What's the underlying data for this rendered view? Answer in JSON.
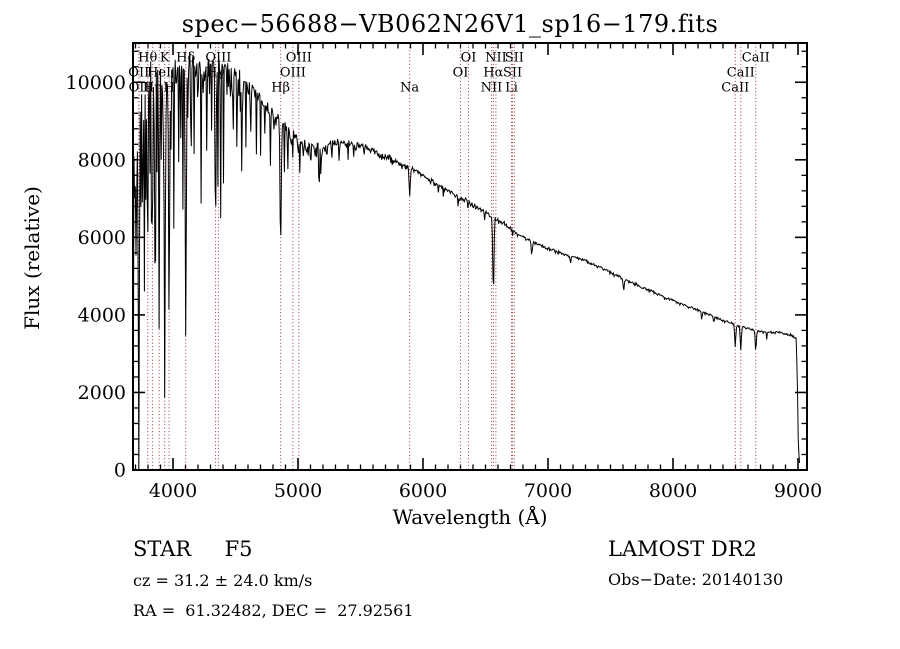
{
  "title": "spec−56688−VB062N26V1_sp16−179.fits",
  "axes": {
    "x_label": "Wavelength (Å)",
    "y_label": "Flux (relative)"
  },
  "annotations": {
    "class_line": "STAR     F5",
    "cz_line": "cz = 31.2 ± 24.0 km/s",
    "radec_line": "RA =  61.32482, DEC =  27.92561",
    "survey": "LAMOST DR2",
    "obsdate_line": "Obs−Date: 20140130"
  },
  "chart_data": {
    "type": "line",
    "title": "spec−56688−VB062N26V1_sp16−179.fits",
    "xlabel": "Wavelength (Å)",
    "ylabel": "Flux (relative)",
    "xlim": [
      3680,
      9072
    ],
    "ylim": [
      0,
      11010
    ],
    "x_ticks": [
      4000,
      5000,
      6000,
      7000,
      8000,
      9000
    ],
    "y_ticks": [
      0,
      2000,
      4000,
      6000,
      8000,
      10000
    ],
    "x_minor_step": 100,
    "y_minor_step": 400,
    "grid": false,
    "line_marker_color": "#9b3a3a",
    "spectrum_color": "#000000",
    "spectral_lines": [
      {
        "name": "OII",
        "wavelength": 3726.2,
        "row": 2
      },
      {
        "name": "OII",
        "wavelength": 3728.9,
        "row": 3
      },
      {
        "name": "Hθ",
        "wavelength": 3798.0,
        "row": 1
      },
      {
        "name": "Hη",
        "wavelength": 3835.4,
        "row": 3
      },
      {
        "name": "HeI",
        "wavelength": 3889.0,
        "row": 2
      },
      {
        "name": "K",
        "wavelength": 3933.7,
        "row": 1
      },
      {
        "name": "H",
        "wavelength": 3968.5,
        "row": 3
      },
      {
        "name": "Hδ",
        "wavelength": 4101.7,
        "row": 1
      },
      {
        "name": "Hγ",
        "wavelength": 4340.5,
        "row": 2
      },
      {
        "name": "OIII",
        "wavelength": 4363.2,
        "row": 1
      },
      {
        "name": "Hβ",
        "wavelength": 4861.3,
        "row": 3
      },
      {
        "name": "OIII",
        "wavelength": 4958.9,
        "row": 2
      },
      {
        "name": "OIII",
        "wavelength": 5006.8,
        "row": 1
      },
      {
        "name": "Na",
        "wavelength": 5893.0,
        "row": 3
      },
      {
        "name": "OI",
        "wavelength": 6300.3,
        "row": 2
      },
      {
        "name": "OI",
        "wavelength": 6363.8,
        "row": 1
      },
      {
        "name": "NII",
        "wavelength": 6548.0,
        "row": 3
      },
      {
        "name": "Hα",
        "wavelength": 6562.8,
        "row": 2
      },
      {
        "name": "NII",
        "wavelength": 6583.4,
        "row": 1
      },
      {
        "name": "Li",
        "wavelength": 6707.8,
        "row": 3
      },
      {
        "name": "SII",
        "wavelength": 6716.4,
        "row": 2
      },
      {
        "name": "SII",
        "wavelength": 6730.8,
        "row": 1
      },
      {
        "name": "CaII",
        "wavelength": 8498.0,
        "row": 3
      },
      {
        "name": "CaII",
        "wavelength": 8542.1,
        "row": 2
      },
      {
        "name": "CaII",
        "wavelength": 8662.1,
        "row": 1
      }
    ],
    "continuum": [
      [
        3680,
        5000
      ],
      [
        3700,
        8800
      ],
      [
        3740,
        9500
      ],
      [
        3800,
        9900
      ],
      [
        3900,
        10150
      ],
      [
        4000,
        10250
      ],
      [
        4100,
        10400
      ],
      [
        4200,
        10500
      ],
      [
        4350,
        10450
      ],
      [
        4450,
        10300
      ],
      [
        4550,
        10000
      ],
      [
        4650,
        9700
      ],
      [
        4750,
        9350
      ],
      [
        4850,
        9000
      ],
      [
        4950,
        8600
      ],
      [
        5050,
        8350
      ],
      [
        5150,
        8300
      ],
      [
        5250,
        8400
      ],
      [
        5350,
        8450
      ],
      [
        5450,
        8400
      ],
      [
        5550,
        8300
      ],
      [
        5650,
        8150
      ],
      [
        5750,
        8000
      ],
      [
        5850,
        7850
      ],
      [
        5950,
        7700
      ],
      [
        6050,
        7500
      ],
      [
        6150,
        7300
      ],
      [
        6250,
        7100
      ],
      [
        6350,
        6950
      ],
      [
        6450,
        6750
      ],
      [
        6550,
        6550
      ],
      [
        6650,
        6350
      ],
      [
        6750,
        6100
      ],
      [
        6900,
        5850
      ],
      [
        7100,
        5600
      ],
      [
        7300,
        5400
      ],
      [
        7500,
        5100
      ],
      [
        7700,
        4800
      ],
      [
        7900,
        4500
      ],
      [
        8100,
        4250
      ],
      [
        8300,
        4000
      ],
      [
        8450,
        3800
      ],
      [
        8550,
        3700
      ],
      [
        8650,
        3600
      ],
      [
        8750,
        3550
      ],
      [
        8850,
        3550
      ],
      [
        8950,
        3480
      ],
      [
        8985,
        3400
      ],
      [
        8995,
        2300
      ],
      [
        9001,
        900
      ],
      [
        9005,
        350
      ],
      [
        9009,
        450
      ],
      [
        9012,
        200
      ],
      [
        9016,
        80
      ]
    ],
    "absorption_features": [
      [
        3726.5,
        7800,
        5
      ],
      [
        3712,
        4500,
        2
      ],
      [
        3722,
        3000,
        2
      ],
      [
        3734,
        3200,
        2
      ],
      [
        3745,
        5200,
        2.5
      ],
      [
        3757,
        3300,
        2
      ],
      [
        3770,
        6300,
        3
      ],
      [
        3781,
        2900,
        2
      ],
      [
        3798,
        4300,
        5
      ],
      [
        3815,
        3600,
        2
      ],
      [
        3827,
        3000,
        2
      ],
      [
        3835.4,
        4800,
        5
      ],
      [
        3848,
        2600,
        2
      ],
      [
        3860,
        2400,
        2
      ],
      [
        3873,
        3300,
        2
      ],
      [
        3889,
        6100,
        5
      ],
      [
        3905,
        2600,
        2
      ],
      [
        3920,
        3500,
        2.5
      ],
      [
        3933.7,
        6950,
        6
      ],
      [
        3947,
        2500,
        2
      ],
      [
        3968.5,
        6450,
        6
      ],
      [
        3985,
        2800,
        2
      ],
      [
        4008,
        5800,
        2.5
      ],
      [
        4026,
        2600,
        2
      ],
      [
        4045,
        2400,
        2
      ],
      [
        4063,
        2200,
        2
      ],
      [
        4080,
        4200,
        2.5
      ],
      [
        4101.7,
        7100,
        6
      ],
      [
        4120,
        2800,
        2
      ],
      [
        4144,
        3600,
        2.5
      ],
      [
        4170,
        2700,
        2
      ],
      [
        4200,
        3100,
        2
      ],
      [
        4226,
        4500,
        2.5
      ],
      [
        4250,
        2500,
        2
      ],
      [
        4271,
        2900,
        2
      ],
      [
        4290,
        2600,
        2
      ],
      [
        4310,
        2500,
        2
      ],
      [
        4340.5,
        4300,
        6
      ],
      [
        4360,
        3200,
        2.5
      ],
      [
        4383,
        3300,
        2.5
      ],
      [
        4404,
        2800,
        2
      ],
      [
        4430,
        2200,
        2
      ],
      [
        4457,
        2300,
        2
      ],
      [
        4481,
        2000,
        2
      ],
      [
        4510,
        1900,
        2
      ],
      [
        4550,
        2100,
        2
      ],
      [
        4583,
        1800,
        2
      ],
      [
        4620,
        1700,
        2
      ],
      [
        4668,
        1800,
        2
      ],
      [
        4700,
        1500,
        2
      ],
      [
        4736,
        1400,
        2
      ],
      [
        4780,
        1500,
        2
      ],
      [
        4810,
        1300,
        2
      ],
      [
        4861.3,
        3100,
        7
      ],
      [
        4891,
        1000,
        2
      ],
      [
        4920,
        1100,
        2.5
      ],
      [
        4957,
        800,
        2
      ],
      [
        5015,
        700,
        2.5
      ],
      [
        5041,
        600,
        2
      ],
      [
        5100,
        500,
        2.5
      ],
      [
        5167,
        900,
        3.5
      ],
      [
        5172,
        800,
        3
      ],
      [
        5183,
        700,
        3
      ],
      [
        5230,
        500,
        3
      ],
      [
        5270,
        600,
        3
      ],
      [
        5328,
        450,
        3
      ],
      [
        5400,
        350,
        3
      ],
      [
        5446,
        350,
        3
      ],
      [
        5528,
        300,
        3
      ],
      [
        5893,
        700,
        7
      ],
      [
        6122,
        250,
        3
      ],
      [
        6162,
        220,
        3
      ],
      [
        6280,
        200,
        3
      ],
      [
        6360,
        180,
        3
      ],
      [
        6494,
        250,
        3
      ],
      [
        6562.8,
        1950,
        7
      ],
      [
        6717,
        180,
        3
      ],
      [
        6870,
        350,
        6
      ],
      [
        7180,
        200,
        5
      ],
      [
        7605,
        300,
        7
      ],
      [
        8230,
        180,
        5
      ],
      [
        8327,
        150,
        4
      ],
      [
        8498,
        580,
        6
      ],
      [
        8542,
        620,
        6
      ],
      [
        8662,
        520,
        6
      ],
      [
        8750,
        200,
        4
      ]
    ],
    "noise_profile": [
      [
        3705,
        3000
      ],
      [
        3760,
        1400
      ],
      [
        3910,
        750
      ],
      [
        4400,
        430
      ],
      [
        4750,
        380
      ],
      [
        5210,
        240
      ],
      [
        5910,
        135
      ],
      [
        6710,
        80
      ],
      [
        7610,
        55
      ],
      [
        8510,
        45
      ],
      [
        8995,
        38
      ],
      [
        9030,
        25
      ]
    ]
  }
}
